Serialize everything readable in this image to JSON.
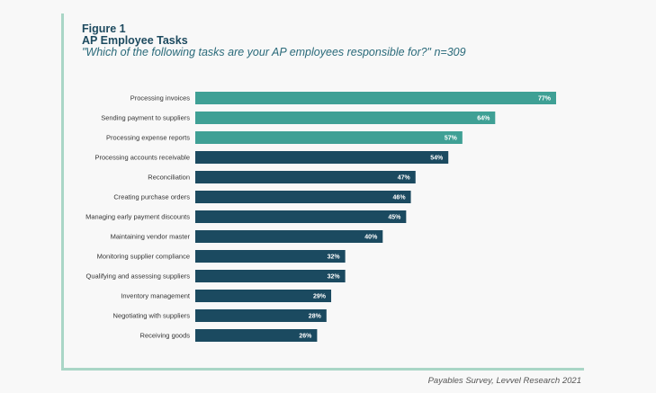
{
  "figure_label": "Figure 1",
  "title": "AP Employee Tasks",
  "subtitle": "\"Which of the following tasks are your AP employees responsible for?\" n=309",
  "footer": "Payables Survey, Levvel Research 2021",
  "colors": {
    "highlight": "#3fa095",
    "default": "#1b4a60",
    "frame": "#a9d6c6"
  },
  "chart_data": {
    "type": "bar",
    "orientation": "horizontal",
    "categories": [
      "Processing invoices",
      "Sending payment to suppliers",
      "Processing expense reports",
      "Processing accounts receivable",
      "Reconciliation",
      "Creating purchase orders",
      "Managing early payment discounts",
      "Maintaining vendor master",
      "Monitoring supplier compliance",
      "Qualifying and assessing suppliers",
      "Inventory management",
      "Negotiating with suppliers",
      "Receiving goods"
    ],
    "values": [
      77,
      64,
      57,
      54,
      47,
      46,
      45,
      40,
      32,
      32,
      29,
      28,
      26
    ],
    "data_labels": [
      "77%",
      "64%",
      "57%",
      "54%",
      "47%",
      "46%",
      "45%",
      "40%",
      "32%",
      "32%",
      "29%",
      "28%",
      "26%"
    ],
    "highlighted": [
      true,
      true,
      true,
      false,
      false,
      false,
      false,
      false,
      false,
      false,
      false,
      false,
      false
    ],
    "unit": "%",
    "grid": false
  }
}
